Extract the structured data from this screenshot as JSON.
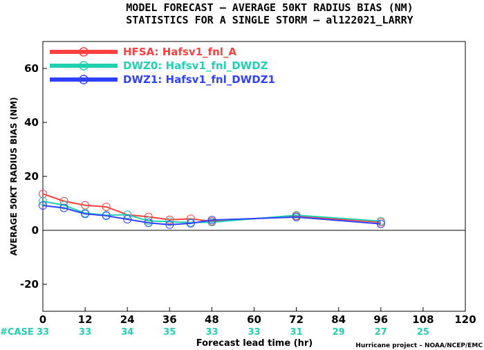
{
  "chart_data": {
    "type": "line",
    "title": "MODEL FORECAST – AVERAGE 50KT RADIUS BIAS (NM)",
    "subtitle": "STATISTICS FOR A SINGLE STORM – al122021_LARRY",
    "xlabel": "Forecast lead time (hr)",
    "ylabel": "AVERAGE 50KT RADIUS BIAS (NM)",
    "xlim": [
      0,
      120
    ],
    "ylim": [
      -30,
      70
    ],
    "xticks": [
      0,
      12,
      24,
      36,
      48,
      60,
      72,
      84,
      96,
      108,
      120
    ],
    "yticks": [
      -20,
      0,
      20,
      40,
      60
    ],
    "grid": false,
    "zero_line": true,
    "legend_position": "top-left",
    "series": [
      {
        "name": "HFSA: Hafsv1_fnl_A",
        "color": "#ff4040",
        "x": [
          0,
          6,
          12,
          18,
          24,
          30,
          36,
          42,
          48,
          72,
          96
        ],
        "y": [
          13.5,
          10.8,
          9.3,
          8.7,
          5.8,
          5.0,
          3.9,
          4.3,
          3.3,
          5.3,
          3.0
        ]
      },
      {
        "name": "DWZ0: Hafsv1_fnl_DWDZ",
        "color": "#20d0b0",
        "x": [
          0,
          6,
          12,
          18,
          24,
          30,
          36,
          42,
          48,
          72,
          96
        ],
        "y": [
          10.8,
          9.3,
          6.4,
          5.6,
          5.8,
          3.5,
          3.2,
          2.9,
          3.0,
          5.6,
          3.4
        ]
      },
      {
        "name": "DWZ1: Hafsv1_fnl_DWDZ1",
        "color": "#3040ff",
        "x": [
          0,
          6,
          12,
          18,
          24,
          30,
          36,
          42,
          48,
          72,
          96
        ],
        "y": [
          9.2,
          8.3,
          6.1,
          5.4,
          4.1,
          2.8,
          2.1,
          2.6,
          3.8,
          4.9,
          2.4
        ]
      }
    ],
    "case_label": "#CASE",
    "case_label_color": "#20d0b0",
    "case_counts": [
      {
        "x": 0,
        "n": "33"
      },
      {
        "x": 12,
        "n": "33"
      },
      {
        "x": 24,
        "n": "34"
      },
      {
        "x": 36,
        "n": "35"
      },
      {
        "x": 48,
        "n": "33"
      },
      {
        "x": 60,
        "n": "33"
      },
      {
        "x": 72,
        "n": "31"
      },
      {
        "x": 84,
        "n": "29"
      },
      {
        "x": 96,
        "n": "27"
      },
      {
        "x": 108,
        "n": "25"
      }
    ],
    "credit": "Hurricane project – NOAA/NCEP/EMC"
  }
}
